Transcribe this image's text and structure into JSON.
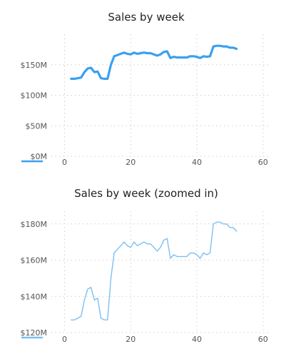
{
  "chart_data": [
    {
      "type": "line",
      "title": "Sales by week",
      "xlabel": "",
      "ylabel": "",
      "x_ticks": [
        0,
        20,
        40,
        60
      ],
      "y_ticks": [
        "$0M",
        "$50M",
        "$100M",
        "$150M"
      ],
      "y_tick_values": [
        0,
        50,
        100,
        150
      ],
      "xlim": [
        -4,
        62
      ],
      "ylim": [
        0,
        200
      ],
      "grid": true,
      "color": "#3aa0f0",
      "series": [
        {
          "x": [
            2,
            3,
            4,
            5,
            6,
            7,
            8,
            9,
            10,
            11,
            12,
            13,
            14,
            15,
            16,
            17,
            18,
            19,
            20,
            21,
            22,
            23,
            24,
            25,
            26,
            27,
            28,
            29,
            30,
            31,
            32,
            33,
            34,
            35,
            36,
            37,
            38,
            39,
            40,
            41,
            42,
            43,
            44,
            45,
            46,
            47,
            48,
            49,
            50,
            51,
            52
          ],
          "values": [
            127,
            127,
            128,
            129,
            138,
            144,
            145,
            138,
            139,
            128,
            127,
            127,
            150,
            164,
            166,
            168,
            170,
            168,
            167,
            170,
            168,
            169,
            170,
            169,
            169,
            167,
            165,
            167,
            171,
            172,
            161,
            163,
            162,
            162,
            162,
            162,
            164,
            164,
            163,
            161,
            164,
            163,
            164,
            180,
            181,
            181,
            180,
            180,
            178,
            178,
            176
          ]
        }
      ]
    },
    {
      "type": "line",
      "title": "Sales by week (zoomed in)",
      "xlabel": "",
      "ylabel": "",
      "x_ticks": [
        0,
        20,
        40,
        60
      ],
      "y_ticks": [
        "$120M",
        "$140M",
        "$160M",
        "$180M"
      ],
      "y_tick_values": [
        120,
        140,
        160,
        180
      ],
      "xlim": [
        -4,
        62
      ],
      "ylim": [
        120,
        187
      ],
      "grid": true,
      "color": "#7cc0f2",
      "series": [
        {
          "x": [
            2,
            3,
            4,
            5,
            6,
            7,
            8,
            9,
            10,
            11,
            12,
            13,
            14,
            15,
            16,
            17,
            18,
            19,
            20,
            21,
            22,
            23,
            24,
            25,
            26,
            27,
            28,
            29,
            30,
            31,
            32,
            33,
            34,
            35,
            36,
            37,
            38,
            39,
            40,
            41,
            42,
            43,
            44,
            45,
            46,
            47,
            48,
            49,
            50,
            51,
            52
          ],
          "values": [
            127,
            127,
            128,
            129,
            138,
            144,
            145,
            138,
            139,
            128,
            127,
            127,
            150,
            164,
            166,
            168,
            170,
            168,
            167,
            170,
            168,
            169,
            170,
            169,
            169,
            167,
            165,
            167,
            171,
            172,
            161,
            163,
            162,
            162,
            162,
            162,
            164,
            164,
            163,
            161,
            164,
            163,
            164,
            180,
            181,
            181,
            180,
            180,
            178,
            178,
            176
          ]
        }
      ]
    }
  ]
}
